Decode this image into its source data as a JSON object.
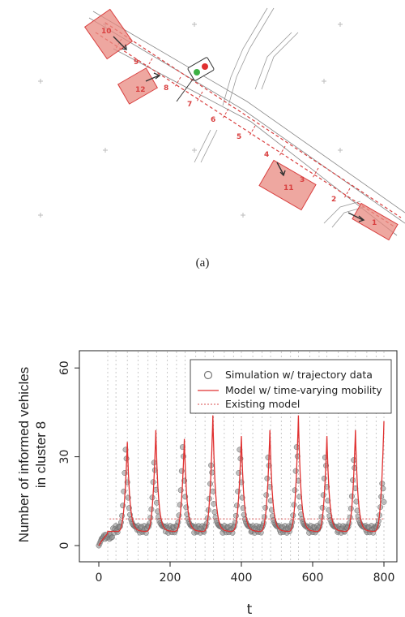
{
  "figure_a": {
    "caption": "(a)",
    "segments": [
      "1",
      "2",
      "3",
      "4",
      "5",
      "6",
      "7",
      "8",
      "9"
    ],
    "zones": [
      "10",
      "11",
      "12"
    ]
  },
  "figure_b": {
    "ylabel_line1": "Number of informed vehicles",
    "ylabel_line2": "in cluster 8",
    "xlabel": "t",
    "legend": [
      "Simulation w/ trajectory data",
      "Model w/ time-varying mobility",
      "Existing model"
    ],
    "colors": {
      "model": "#e03030",
      "existing": "#e07070",
      "sim": "#777777"
    }
  },
  "chart_data": {
    "type": "line",
    "xlabel": "t",
    "ylabel": "Number of informed vehicles in cluster 8",
    "xlim": [
      0,
      800
    ],
    "ylim": [
      0,
      65
    ],
    "xticks": [
      0,
      200,
      400,
      600,
      800
    ],
    "yticks": [
      0,
      30,
      60
    ],
    "grid": "vertical dotted",
    "legend_position": "top-right",
    "peaks_t": [
      80,
      160,
      240,
      320,
      400,
      480,
      560,
      640,
      720,
      800
    ],
    "series": [
      {
        "name": "Simulation w/ trajectory data",
        "style": "points",
        "peak_values": [
          36,
          31,
          37,
          30,
          36,
          33,
          37,
          33,
          32,
          23
        ]
      },
      {
        "name": "Model w/ time-varying mobility",
        "style": "line",
        "peak_values": [
          35,
          39,
          36,
          44,
          37,
          39,
          44,
          37,
          39,
          42
        ]
      },
      {
        "name": "Existing model",
        "style": "dotted",
        "value": 9
      }
    ]
  }
}
